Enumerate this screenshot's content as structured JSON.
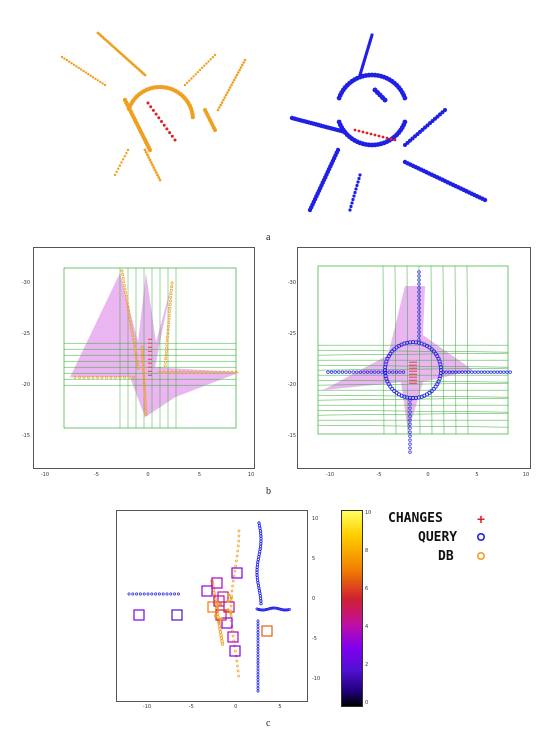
{
  "figure": {
    "panel_a_label": "a",
    "panel_b_label": "b",
    "panel_c_label": "c"
  },
  "colors": {
    "query": "#1f1fe6",
    "db": "#f0a020",
    "changes": "#e02020",
    "grid": "#33aa33",
    "fill": "#e8a8f0"
  },
  "panel_b_left": {
    "x_ticks": [
      "-10",
      "-5",
      "0",
      "5",
      "10"
    ],
    "y_ticks": [
      "-30",
      "-25",
      "-20",
      "-15"
    ]
  },
  "panel_b_right": {
    "x_ticks": [
      "-10",
      "-5",
      "0",
      "5",
      "10"
    ],
    "y_ticks": [
      "-30",
      "-25",
      "-20",
      "-15"
    ]
  },
  "panel_c": {
    "x_ticks": [
      "-10",
      "-5",
      "0",
      "5"
    ],
    "y_ticks": [
      "10",
      "5",
      "0",
      "-5",
      "-10"
    ],
    "colorbar_ticks": [
      "10",
      "8",
      "6",
      "4",
      "2",
      "0"
    ],
    "legend": [
      {
        "label": "CHANGES",
        "marker": "+"
      },
      {
        "label": "QUERY",
        "marker": "o"
      },
      {
        "label": "DB",
        "marker": "o"
      }
    ]
  }
}
